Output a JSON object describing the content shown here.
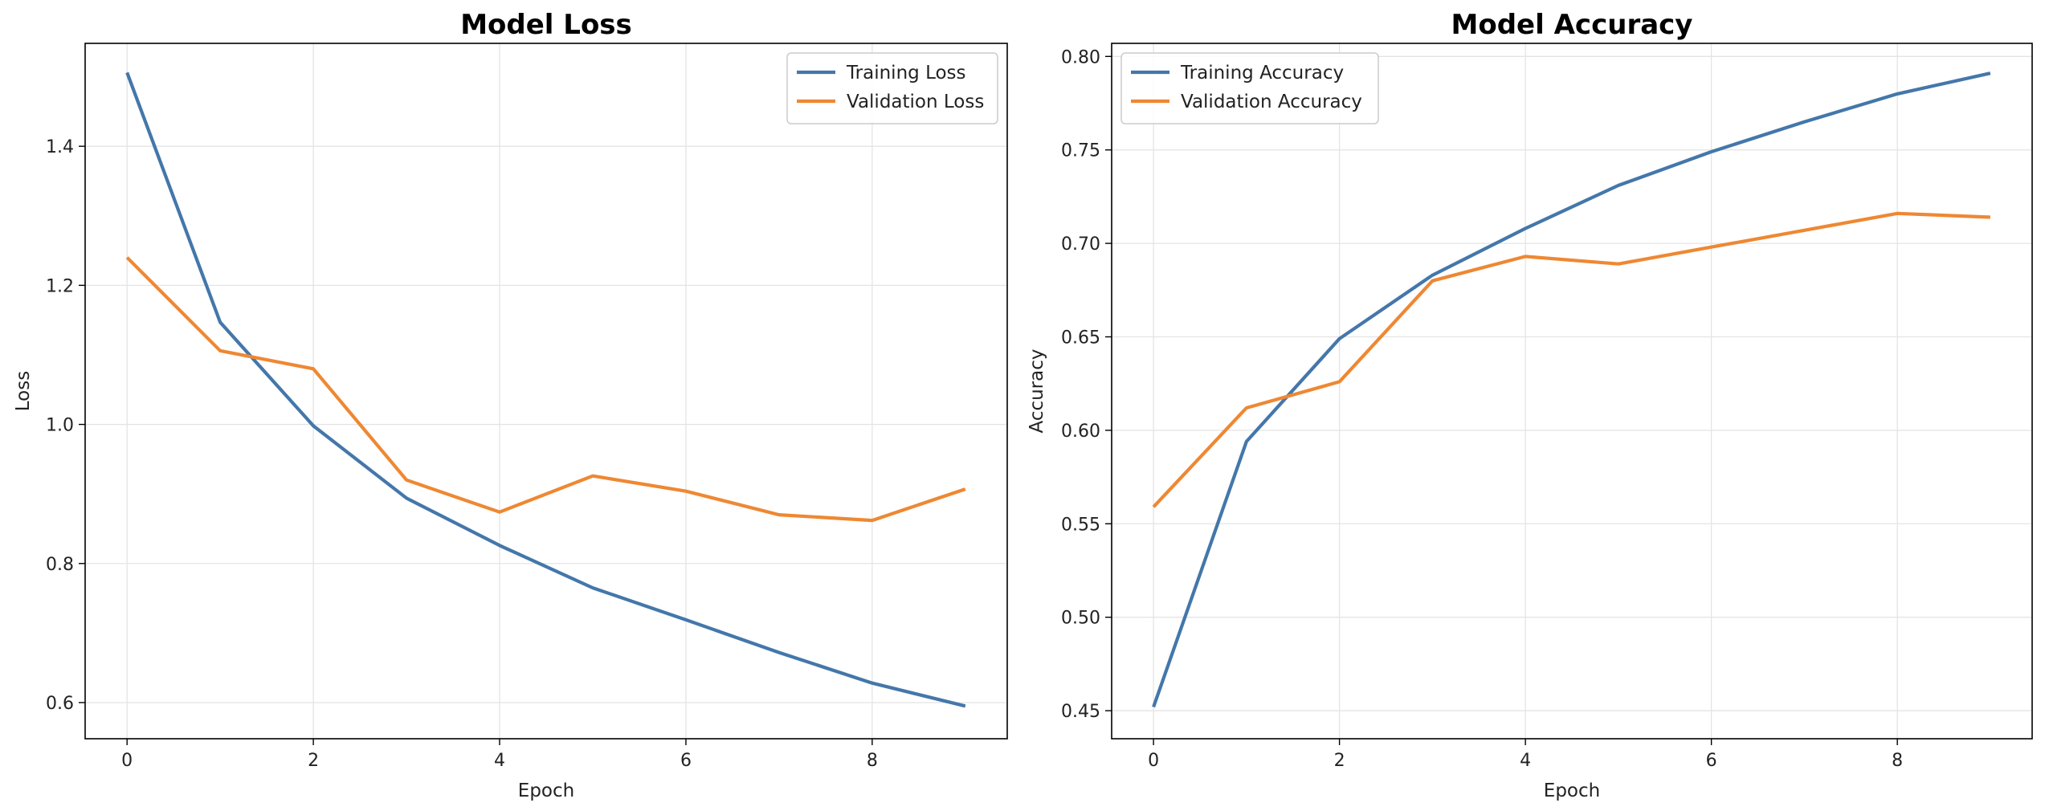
{
  "chart_data": [
    {
      "type": "line",
      "title": "Model Loss",
      "xlabel": "Epoch",
      "ylabel": "Loss",
      "xlim": [
        -0.45,
        9.45
      ],
      "ylim": [
        0.548,
        1.548
      ],
      "xticks": [
        0,
        2,
        4,
        6,
        8
      ],
      "yticks": [
        0.6,
        0.8,
        1.0,
        1.2,
        1.4
      ],
      "ytick_labels": [
        "0.6",
        "0.8",
        "1.0",
        "1.2",
        "1.4"
      ],
      "grid": true,
      "legend_position": "top-right",
      "x": [
        0,
        1,
        2,
        3,
        4,
        5,
        6,
        7,
        8,
        9
      ],
      "series": [
        {
          "name": "Training Loss",
          "color": "#4477AA",
          "values": [
            1.506,
            1.147,
            0.998,
            0.894,
            0.826,
            0.765,
            0.719,
            0.672,
            0.628,
            0.595
          ]
        },
        {
          "name": "Validation Loss",
          "color": "#EE8833",
          "values": [
            1.24,
            1.106,
            1.08,
            0.92,
            0.874,
            0.926,
            0.904,
            0.87,
            0.862,
            0.907
          ]
        }
      ]
    },
    {
      "type": "line",
      "title": "Model Accuracy",
      "xlabel": "Epoch",
      "ylabel": "Accuracy",
      "xlim": [
        -0.45,
        9.45
      ],
      "ylim": [
        0.435,
        0.807
      ],
      "xticks": [
        0,
        2,
        4,
        6,
        8
      ],
      "yticks": [
        0.45,
        0.5,
        0.55,
        0.6,
        0.65,
        0.7,
        0.75,
        0.8
      ],
      "ytick_labels": [
        "0.45",
        "0.50",
        "0.55",
        "0.60",
        "0.65",
        "0.70",
        "0.75",
        "0.80"
      ],
      "grid": true,
      "legend_position": "top-left",
      "x": [
        0,
        1,
        2,
        3,
        4,
        5,
        6,
        7,
        8,
        9
      ],
      "series": [
        {
          "name": "Training Accuracy",
          "color": "#4477AA",
          "values": [
            0.452,
            0.594,
            0.649,
            0.683,
            0.708,
            0.731,
            0.749,
            0.765,
            0.78,
            0.791
          ]
        },
        {
          "name": "Validation Accuracy",
          "color": "#EE8833",
          "values": [
            0.559,
            0.612,
            0.626,
            0.68,
            0.693,
            0.689,
            0.698,
            0.707,
            0.716,
            0.714
          ]
        }
      ]
    }
  ]
}
